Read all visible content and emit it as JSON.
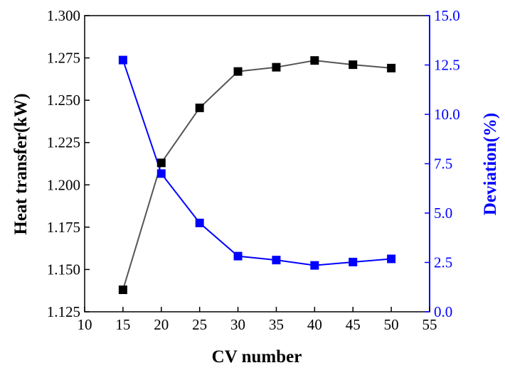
{
  "chart_data": {
    "type": "line",
    "title": "",
    "xlabel": "CV number",
    "ylabel_left": "Heat transfer(kW)",
    "ylabel_right": "Deviation(%)",
    "xlim": [
      10,
      55
    ],
    "ylim_left": [
      1.125,
      1.3
    ],
    "ylim_right": [
      0.0,
      15.0
    ],
    "x_ticks": [
      "10",
      "15",
      "20",
      "25",
      "30",
      "35",
      "40",
      "45",
      "50",
      "55"
    ],
    "y_left_ticks": [
      "1.125",
      "1.150",
      "1.175",
      "1.200",
      "1.225",
      "1.250",
      "1.275",
      "1.300"
    ],
    "y_right_ticks": [
      "0.0",
      "2.5",
      "5.0",
      "7.5",
      "10.0",
      "12.5",
      "15.0"
    ],
    "x": [
      15,
      20,
      25,
      30,
      35,
      40,
      45,
      50
    ],
    "series": [
      {
        "name": "Heat transfer",
        "axis": "left",
        "color": "#555555",
        "marker_color": "#000000",
        "marker": "square",
        "values": [
          1.138,
          1.213,
          1.2455,
          1.267,
          1.2695,
          1.2735,
          1.271,
          1.269
        ]
      },
      {
        "name": "Deviation",
        "axis": "right",
        "color": "#0000ff",
        "marker_color": "#0000ff",
        "marker": "square",
        "values": [
          12.75,
          7.0,
          4.5,
          2.82,
          2.62,
          2.35,
          2.52,
          2.68
        ]
      }
    ],
    "right_axis_color": "#0000ff"
  }
}
